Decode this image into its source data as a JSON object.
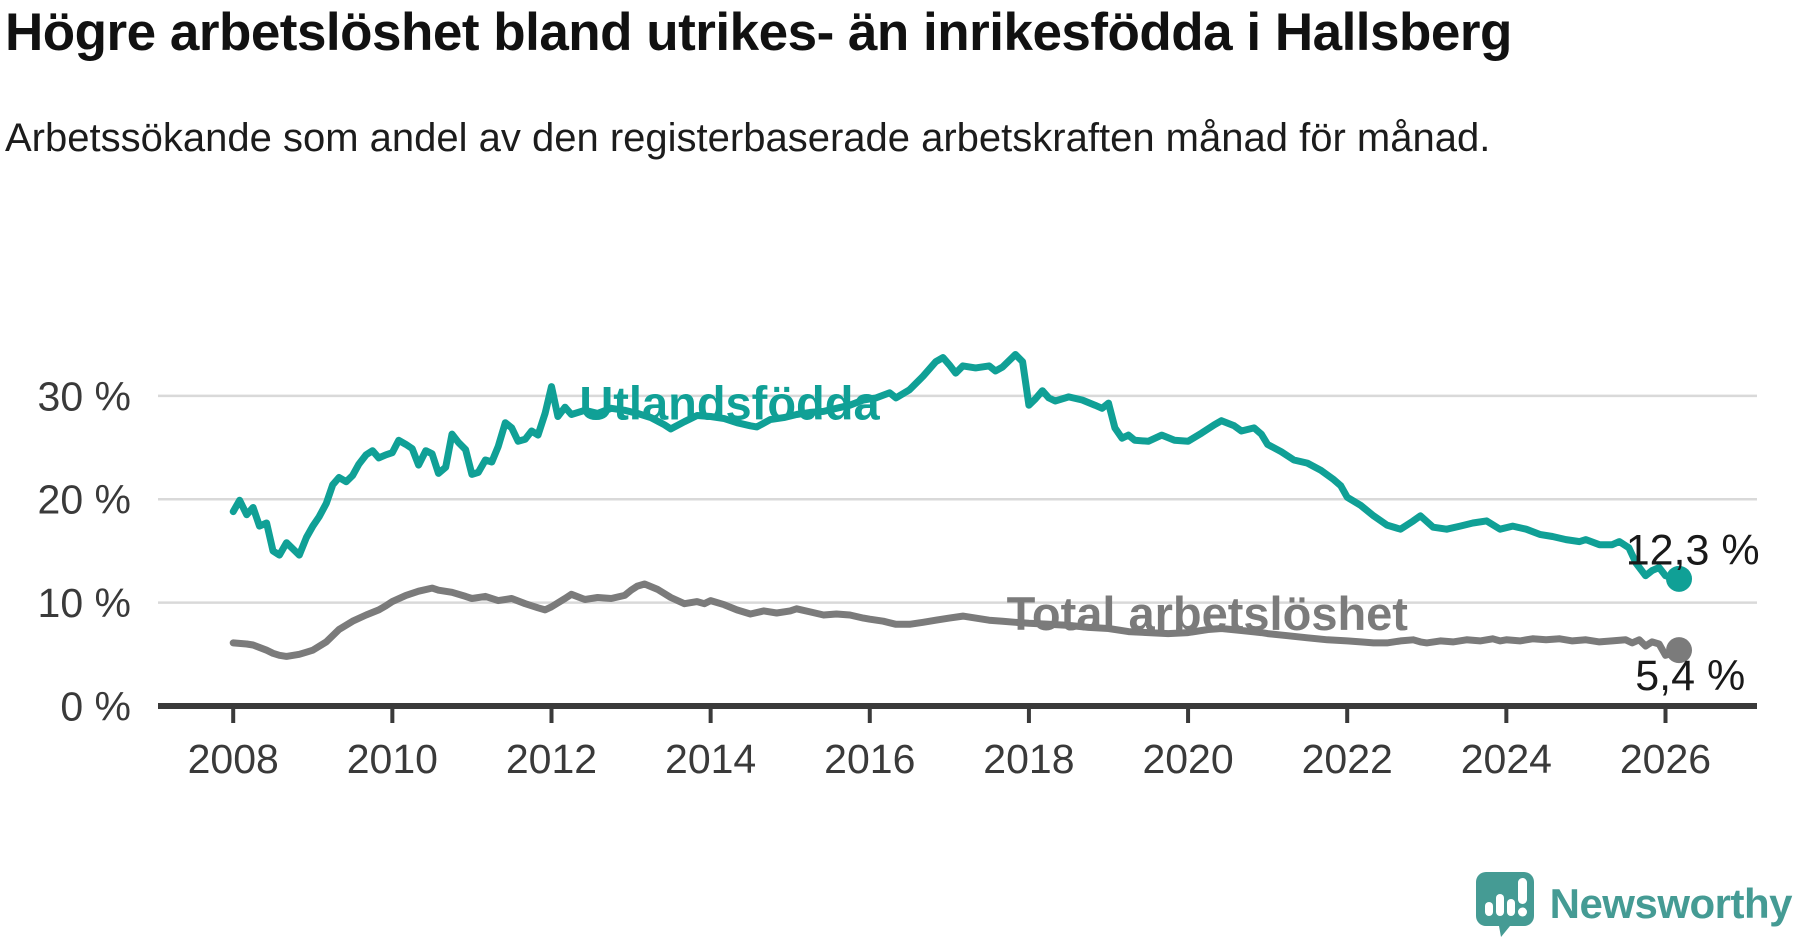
{
  "header": {
    "title": "Högre arbetslöshet bland utrikes- än inrikesfödda i Hallsberg",
    "subtitle": "Arbetssökande som andel av den registerbaserade arbetskraften månad för månad."
  },
  "branding": {
    "name": "Newsworthy",
    "logo_color": "#459b94",
    "icon": "newsworthy-speech-bubble-barchart-icon"
  },
  "colors": {
    "foreign_born_line": "#10a096",
    "total_line": "#7b7b7b",
    "gridline": "#d9d9d9",
    "axis": "#3a3a3a",
    "value_label_text": "#191919"
  },
  "chart_data": {
    "type": "line",
    "title": "Högre arbetslöshet bland utrikes- än inrikesfödda i Hallsberg",
    "xlabel": "",
    "ylabel": "",
    "unit": "%",
    "grid": "horizontal",
    "x_axis": {
      "min": 2007.08,
      "max": 2027.15,
      "ticks": [
        "2008",
        "2010",
        "2012",
        "2014",
        "2016",
        "2018",
        "2020",
        "2022",
        "2024",
        "2026"
      ],
      "tick_values": [
        2008,
        2010,
        2012,
        2014,
        2016,
        2018,
        2020,
        2022,
        2024,
        2026
      ]
    },
    "y_axis": {
      "min": 0,
      "max": 35.5,
      "ticks": [
        "0 %",
        "10 %",
        "20 %",
        "30 %"
      ],
      "tick_values": [
        0,
        10,
        20,
        30
      ]
    },
    "series": [
      {
        "name": "Utlandsfödda",
        "color": "#10a096",
        "end_label": "12,3 %",
        "end_value": 12.3,
        "label_anchor": {
          "x": 2012.35,
          "y": 27.7
        },
        "end_label_anchor": {
          "x": 2025.5,
          "y": 13.7
        },
        "points": [
          [
            2008.0,
            18.8
          ],
          [
            2008.08,
            19.9
          ],
          [
            2008.17,
            18.5
          ],
          [
            2008.25,
            19.2
          ],
          [
            2008.33,
            17.4
          ],
          [
            2008.42,
            17.7
          ],
          [
            2008.5,
            15.0
          ],
          [
            2008.58,
            14.6
          ],
          [
            2008.67,
            15.8
          ],
          [
            2008.75,
            15.2
          ],
          [
            2008.83,
            14.6
          ],
          [
            2008.92,
            16.3
          ],
          [
            2009.0,
            17.4
          ],
          [
            2009.08,
            18.3
          ],
          [
            2009.17,
            19.6
          ],
          [
            2009.25,
            21.4
          ],
          [
            2009.33,
            22.1
          ],
          [
            2009.42,
            21.7
          ],
          [
            2009.5,
            22.3
          ],
          [
            2009.58,
            23.4
          ],
          [
            2009.67,
            24.3
          ],
          [
            2009.75,
            24.7
          ],
          [
            2009.83,
            24.0
          ],
          [
            2009.92,
            24.3
          ],
          [
            2010.0,
            24.5
          ],
          [
            2010.08,
            25.7
          ],
          [
            2010.17,
            25.3
          ],
          [
            2010.25,
            24.9
          ],
          [
            2010.33,
            23.3
          ],
          [
            2010.42,
            24.7
          ],
          [
            2010.5,
            24.4
          ],
          [
            2010.58,
            22.5
          ],
          [
            2010.67,
            23.1
          ],
          [
            2010.75,
            26.3
          ],
          [
            2010.83,
            25.5
          ],
          [
            2010.92,
            24.8
          ],
          [
            2011.0,
            22.4
          ],
          [
            2011.08,
            22.6
          ],
          [
            2011.17,
            23.8
          ],
          [
            2011.25,
            23.6
          ],
          [
            2011.33,
            25.1
          ],
          [
            2011.42,
            27.4
          ],
          [
            2011.5,
            26.9
          ],
          [
            2011.58,
            25.6
          ],
          [
            2011.67,
            25.8
          ],
          [
            2011.75,
            26.6
          ],
          [
            2011.83,
            26.2
          ],
          [
            2011.92,
            28.3
          ],
          [
            2012.0,
            30.9
          ],
          [
            2012.08,
            28.0
          ],
          [
            2012.17,
            28.9
          ],
          [
            2012.25,
            28.2
          ],
          [
            2012.42,
            28.6
          ],
          [
            2012.58,
            28.3
          ],
          [
            2012.75,
            28.8
          ],
          [
            2012.92,
            28.6
          ],
          [
            2013.08,
            28.3
          ],
          [
            2013.25,
            27.9
          ],
          [
            2013.42,
            27.2
          ],
          [
            2013.5,
            26.8
          ],
          [
            2013.67,
            27.5
          ],
          [
            2013.83,
            28.1
          ],
          [
            2014.0,
            28.0
          ],
          [
            2014.17,
            27.8
          ],
          [
            2014.33,
            27.4
          ],
          [
            2014.5,
            27.1
          ],
          [
            2014.58,
            27.0
          ],
          [
            2014.75,
            27.7
          ],
          [
            2014.92,
            27.9
          ],
          [
            2015.08,
            28.2
          ],
          [
            2015.25,
            28.4
          ],
          [
            2015.42,
            28.5
          ],
          [
            2015.58,
            28.8
          ],
          [
            2015.75,
            29.1
          ],
          [
            2015.92,
            29.6
          ],
          [
            2016.08,
            29.8
          ],
          [
            2016.25,
            30.3
          ],
          [
            2016.33,
            29.8
          ],
          [
            2016.5,
            30.6
          ],
          [
            2016.67,
            31.9
          ],
          [
            2016.83,
            33.3
          ],
          [
            2016.92,
            33.7
          ],
          [
            2017.0,
            33.0
          ],
          [
            2017.08,
            32.2
          ],
          [
            2017.17,
            32.9
          ],
          [
            2017.33,
            32.7
          ],
          [
            2017.5,
            32.9
          ],
          [
            2017.58,
            32.4
          ],
          [
            2017.67,
            32.8
          ],
          [
            2017.83,
            34.0
          ],
          [
            2017.92,
            33.3
          ],
          [
            2018.0,
            29.1
          ],
          [
            2018.08,
            29.7
          ],
          [
            2018.17,
            30.5
          ],
          [
            2018.25,
            29.8
          ],
          [
            2018.33,
            29.5
          ],
          [
            2018.5,
            29.9
          ],
          [
            2018.67,
            29.6
          ],
          [
            2018.83,
            29.1
          ],
          [
            2018.92,
            28.8
          ],
          [
            2019.0,
            29.3
          ],
          [
            2019.08,
            26.9
          ],
          [
            2019.17,
            25.9
          ],
          [
            2019.25,
            26.2
          ],
          [
            2019.33,
            25.7
          ],
          [
            2019.5,
            25.6
          ],
          [
            2019.67,
            26.2
          ],
          [
            2019.83,
            25.7
          ],
          [
            2020.0,
            25.6
          ],
          [
            2020.17,
            26.4
          ],
          [
            2020.33,
            27.2
          ],
          [
            2020.42,
            27.6
          ],
          [
            2020.58,
            27.1
          ],
          [
            2020.67,
            26.6
          ],
          [
            2020.83,
            26.9
          ],
          [
            2020.92,
            26.3
          ],
          [
            2021.0,
            25.3
          ],
          [
            2021.17,
            24.6
          ],
          [
            2021.33,
            23.8
          ],
          [
            2021.5,
            23.5
          ],
          [
            2021.67,
            22.8
          ],
          [
            2021.83,
            21.9
          ],
          [
            2021.92,
            21.3
          ],
          [
            2022.0,
            20.2
          ],
          [
            2022.17,
            19.4
          ],
          [
            2022.33,
            18.4
          ],
          [
            2022.5,
            17.5
          ],
          [
            2022.67,
            17.1
          ],
          [
            2022.83,
            17.9
          ],
          [
            2022.92,
            18.4
          ],
          [
            2023.08,
            17.3
          ],
          [
            2023.25,
            17.1
          ],
          [
            2023.42,
            17.4
          ],
          [
            2023.58,
            17.7
          ],
          [
            2023.75,
            17.9
          ],
          [
            2023.92,
            17.1
          ],
          [
            2024.08,
            17.4
          ],
          [
            2024.25,
            17.1
          ],
          [
            2024.42,
            16.6
          ],
          [
            2024.58,
            16.4
          ],
          [
            2024.75,
            16.1
          ],
          [
            2024.92,
            15.9
          ],
          [
            2025.0,
            16.1
          ],
          [
            2025.17,
            15.6
          ],
          [
            2025.33,
            15.6
          ],
          [
            2025.42,
            15.9
          ],
          [
            2025.54,
            15.3
          ],
          [
            2025.63,
            13.8
          ],
          [
            2025.75,
            12.6
          ],
          [
            2025.83,
            13.1
          ],
          [
            2025.92,
            13.4
          ],
          [
            2026.0,
            12.6
          ],
          [
            2026.08,
            12.4
          ],
          [
            2026.17,
            12.3
          ]
        ]
      },
      {
        "name": "Total arbetslöshet",
        "color": "#7b7b7b",
        "end_label": "5,4 %",
        "end_value": 5.4,
        "label_anchor": {
          "x": 2017.72,
          "y": 7.35
        },
        "end_label_anchor": {
          "x": 2025.62,
          "y": 1.55
        },
        "points": [
          [
            2008.0,
            6.1
          ],
          [
            2008.17,
            6.0
          ],
          [
            2008.25,
            5.9
          ],
          [
            2008.42,
            5.4
          ],
          [
            2008.5,
            5.1
          ],
          [
            2008.58,
            4.9
          ],
          [
            2008.67,
            4.8
          ],
          [
            2008.83,
            5.0
          ],
          [
            2008.92,
            5.2
          ],
          [
            2009.0,
            5.4
          ],
          [
            2009.17,
            6.2
          ],
          [
            2009.33,
            7.4
          ],
          [
            2009.5,
            8.2
          ],
          [
            2009.67,
            8.8
          ],
          [
            2009.83,
            9.3
          ],
          [
            2009.92,
            9.7
          ],
          [
            2010.0,
            10.1
          ],
          [
            2010.17,
            10.7
          ],
          [
            2010.33,
            11.1
          ],
          [
            2010.5,
            11.4
          ],
          [
            2010.58,
            11.2
          ],
          [
            2010.75,
            11.0
          ],
          [
            2010.92,
            10.6
          ],
          [
            2011.0,
            10.4
          ],
          [
            2011.17,
            10.6
          ],
          [
            2011.33,
            10.2
          ],
          [
            2011.5,
            10.4
          ],
          [
            2011.67,
            9.9
          ],
          [
            2011.83,
            9.5
          ],
          [
            2011.92,
            9.3
          ],
          [
            2012.0,
            9.6
          ],
          [
            2012.17,
            10.4
          ],
          [
            2012.25,
            10.8
          ],
          [
            2012.42,
            10.3
          ],
          [
            2012.58,
            10.5
          ],
          [
            2012.75,
            10.4
          ],
          [
            2012.92,
            10.7
          ],
          [
            2013.0,
            11.2
          ],
          [
            2013.08,
            11.6
          ],
          [
            2013.17,
            11.8
          ],
          [
            2013.33,
            11.3
          ],
          [
            2013.5,
            10.5
          ],
          [
            2013.67,
            9.9
          ],
          [
            2013.83,
            10.1
          ],
          [
            2013.92,
            9.9
          ],
          [
            2014.0,
            10.2
          ],
          [
            2014.17,
            9.8
          ],
          [
            2014.33,
            9.3
          ],
          [
            2014.5,
            8.9
          ],
          [
            2014.67,
            9.2
          ],
          [
            2014.83,
            9.0
          ],
          [
            2015.0,
            9.2
          ],
          [
            2015.08,
            9.4
          ],
          [
            2015.25,
            9.1
          ],
          [
            2015.42,
            8.8
          ],
          [
            2015.58,
            8.9
          ],
          [
            2015.75,
            8.8
          ],
          [
            2015.92,
            8.5
          ],
          [
            2016.0,
            8.4
          ],
          [
            2016.17,
            8.2
          ],
          [
            2016.33,
            7.9
          ],
          [
            2016.5,
            7.9
          ],
          [
            2016.67,
            8.1
          ],
          [
            2016.83,
            8.3
          ],
          [
            2017.0,
            8.5
          ],
          [
            2017.17,
            8.7
          ],
          [
            2017.33,
            8.5
          ],
          [
            2017.5,
            8.3
          ],
          [
            2017.67,
            8.2
          ],
          [
            2017.83,
            8.1
          ],
          [
            2018.0,
            8.0
          ],
          [
            2018.25,
            7.9
          ],
          [
            2018.5,
            7.8
          ],
          [
            2018.75,
            7.6
          ],
          [
            2019.0,
            7.5
          ],
          [
            2019.25,
            7.2
          ],
          [
            2019.5,
            7.1
          ],
          [
            2019.75,
            7.0
          ],
          [
            2020.0,
            7.1
          ],
          [
            2020.25,
            7.4
          ],
          [
            2020.42,
            7.5
          ],
          [
            2020.67,
            7.3
          ],
          [
            2020.92,
            7.1
          ],
          [
            2021.0,
            7.0
          ],
          [
            2021.25,
            6.8
          ],
          [
            2021.5,
            6.6
          ],
          [
            2021.75,
            6.4
          ],
          [
            2022.0,
            6.3
          ],
          [
            2022.17,
            6.2
          ],
          [
            2022.33,
            6.1
          ],
          [
            2022.5,
            6.1
          ],
          [
            2022.67,
            6.3
          ],
          [
            2022.83,
            6.4
          ],
          [
            2022.92,
            6.2
          ],
          [
            2023.0,
            6.1
          ],
          [
            2023.17,
            6.3
          ],
          [
            2023.33,
            6.2
          ],
          [
            2023.5,
            6.4
          ],
          [
            2023.67,
            6.3
          ],
          [
            2023.83,
            6.5
          ],
          [
            2023.92,
            6.3
          ],
          [
            2024.0,
            6.4
          ],
          [
            2024.17,
            6.3
          ],
          [
            2024.33,
            6.5
          ],
          [
            2024.5,
            6.4
          ],
          [
            2024.67,
            6.5
          ],
          [
            2024.83,
            6.3
          ],
          [
            2025.0,
            6.4
          ],
          [
            2025.17,
            6.2
          ],
          [
            2025.33,
            6.3
          ],
          [
            2025.5,
            6.4
          ],
          [
            2025.58,
            6.1
          ],
          [
            2025.67,
            6.4
          ],
          [
            2025.75,
            5.8
          ],
          [
            2025.83,
            6.2
          ],
          [
            2025.92,
            6.0
          ],
          [
            2026.0,
            4.9
          ],
          [
            2026.08,
            5.1
          ],
          [
            2026.17,
            5.4
          ]
        ]
      }
    ]
  }
}
